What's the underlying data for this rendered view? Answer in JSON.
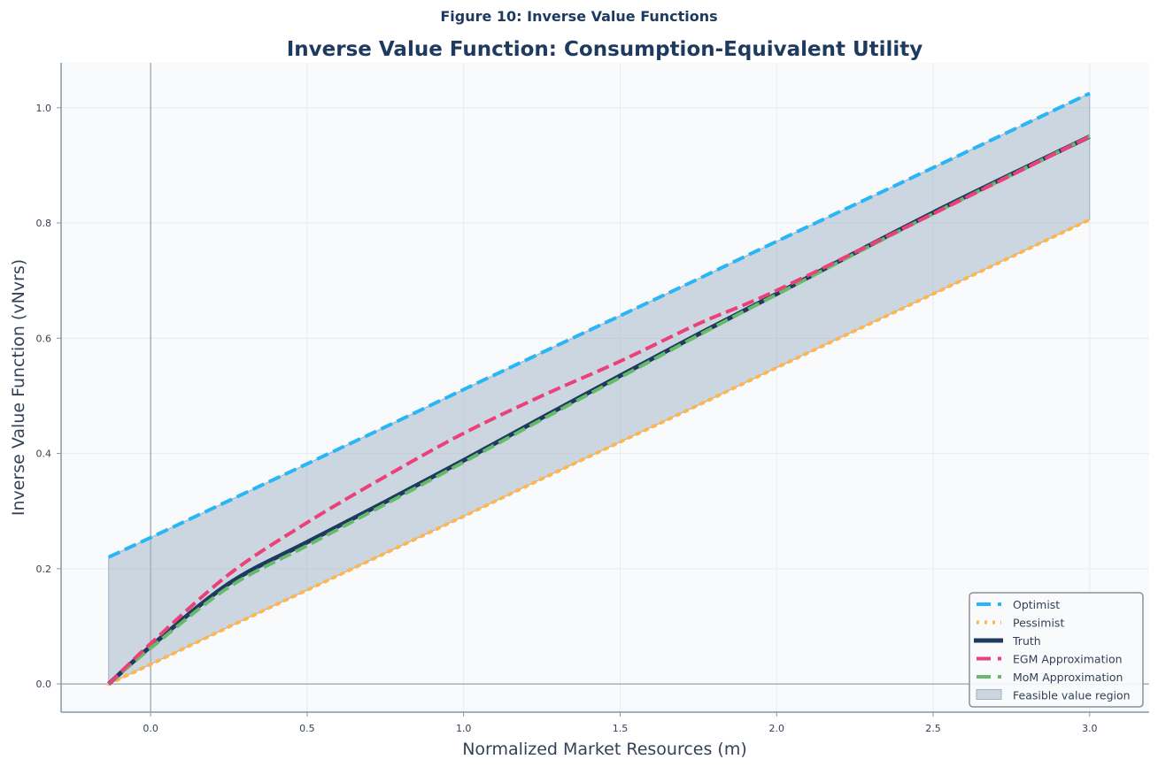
{
  "figure_title": "Figure 10: Inverse Value Functions",
  "chart_data": {
    "type": "line",
    "title": "Inverse Value Function: Consumption-Equivalent Utility",
    "xlabel": "Normalized Market Resources (m)",
    "ylabel": "Inverse Value Function (vNvrs)",
    "xlim": [
      -0.286,
      3.19
    ],
    "ylim": [
      -0.049,
      1.078
    ],
    "xticks": [
      "0.0",
      "0.5",
      "1.0",
      "1.5",
      "2.0",
      "2.5",
      "3.0"
    ],
    "yticks": [
      "0.0",
      "0.2",
      "0.4",
      "0.6",
      "0.8",
      "1.0"
    ],
    "grid": true,
    "legend_position": "bottom-right",
    "x": [
      -0.134,
      0,
      0.25,
      0.5,
      0.75,
      1.0,
      1.25,
      1.5,
      1.75,
      2.0,
      2.5,
      3.0
    ],
    "series": [
      {
        "name": "Optimist",
        "color": "#29b6f6",
        "style": "dashed",
        "values": [
          0.22,
          0.254,
          0.318,
          0.382,
          0.446,
          0.511,
          0.575,
          0.639,
          0.703,
          0.768,
          0.896,
          1.025
        ]
      },
      {
        "name": "Pessimist",
        "color": "#ffb74d",
        "style": "dotted",
        "values": [
          0,
          0.034,
          0.099,
          0.163,
          0.227,
          0.291,
          0.356,
          0.42,
          0.484,
          0.549,
          0.677,
          0.806
        ]
      },
      {
        "name": "Truth",
        "color": "#1e3a5f",
        "style": "solid",
        "values": [
          0,
          0.065,
          0.174,
          0.246,
          0.316,
          0.388,
          0.462,
          0.535,
          0.607,
          0.677,
          0.818,
          0.95
        ]
      },
      {
        "name": "EGM Approximation",
        "color": "#ec407a",
        "style": "dashed",
        "values": [
          0,
          0.07,
          0.19,
          0.28,
          0.36,
          0.435,
          0.5,
          0.56,
          0.625,
          0.683,
          0.816,
          0.95
        ]
      },
      {
        "name": "MoM Approximation",
        "color": "#66bb6a",
        "style": "dashed",
        "values": [
          0,
          0.062,
          0.168,
          0.24,
          0.312,
          0.385,
          0.459,
          0.532,
          0.605,
          0.676,
          0.816,
          0.95
        ]
      }
    ],
    "fill": {
      "name": "Feasible value region",
      "color": "#9fb1c4",
      "between": [
        "Pessimist",
        "Optimist"
      ]
    }
  }
}
